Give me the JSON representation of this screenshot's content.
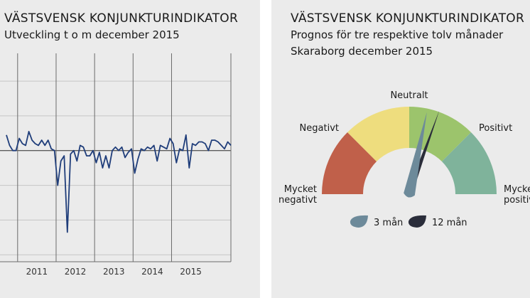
{
  "left": {
    "title": "VÄSTSVENSK KONJUNKTURINDIKATOR",
    "subtitle": "Utveckling t o m december 2015"
  },
  "right": {
    "title": "VÄSTSVENSK KONJUNKTURINDIKATOR",
    "subtitle_line1": "Prognos för tre respektive tolv månader",
    "subtitle_line2": "Skaraborg december 2015"
  },
  "colors": {
    "line": "#1f3d7a",
    "mycket_negativt": "#c0604a",
    "negativt": "#eedd7e",
    "neutralt": "#9cc46c",
    "positivt": "#7fb39b",
    "needle_3m": "#6d8a9a",
    "needle_12m": "#2a2d3a"
  },
  "chart_data": [
    {
      "type": "line",
      "title": "VÄSTSVENSK KONJUNKTURINDIKATOR",
      "subtitle": "Utveckling t o m december 2015",
      "x_tick_labels": [
        "2011",
        "2012",
        "2013",
        "2014",
        "2015"
      ],
      "ylim": [
        -3.2,
        2.8
      ],
      "grid": true,
      "y_tick_labels": [],
      "series": [
        {
          "values": [
            0.45,
            0.15,
            0.0,
            0.0,
            0.35,
            0.2,
            0.15,
            0.55,
            0.3,
            0.2,
            0.15,
            0.3,
            0.15,
            0.3,
            0.05,
            0.0,
            -1.0,
            -0.3,
            -0.15,
            -2.35,
            -0.1,
            0.0,
            -0.3,
            0.15,
            0.1,
            -0.15,
            -0.15,
            0.0,
            -0.35,
            -0.05,
            -0.5,
            -0.15,
            -0.5,
            0.0,
            0.1,
            0.0,
            0.1,
            -0.2,
            -0.05,
            0.05,
            -0.65,
            -0.25,
            0.05,
            0.0,
            0.1,
            0.05,
            0.15,
            -0.3,
            0.15,
            0.1,
            0.05,
            0.35,
            0.2,
            -0.35,
            0.05,
            0.0,
            0.45,
            -0.5,
            0.2,
            0.15,
            0.25,
            0.25,
            0.2,
            0.0,
            0.3,
            0.3,
            0.25,
            0.15,
            0.05,
            0.25,
            0.15
          ]
        }
      ]
    },
    {
      "type": "gauge",
      "title": "VÄSTSVENSK KONJUNKTURINDIKATOR",
      "subtitle": "Prognos för tre respektive tolv månader · Skaraborg december 2015",
      "categories": [
        "Mycket negativt",
        "Negativt",
        "Neutralt",
        "Positivt",
        "Mycket positivt"
      ],
      "category_labels": {
        "mycket_negativt": "Mycket negativt",
        "negativt": "Negativt",
        "neutralt": "Neutralt",
        "positivt": "Positivt",
        "mycket_positivt": "Mycket positivt"
      },
      "range": [
        -2,
        2
      ],
      "series": [
        {
          "name": "3 mån",
          "value": 0.27
        },
        {
          "name": "12 mån",
          "value": 0.44
        }
      ]
    }
  ]
}
